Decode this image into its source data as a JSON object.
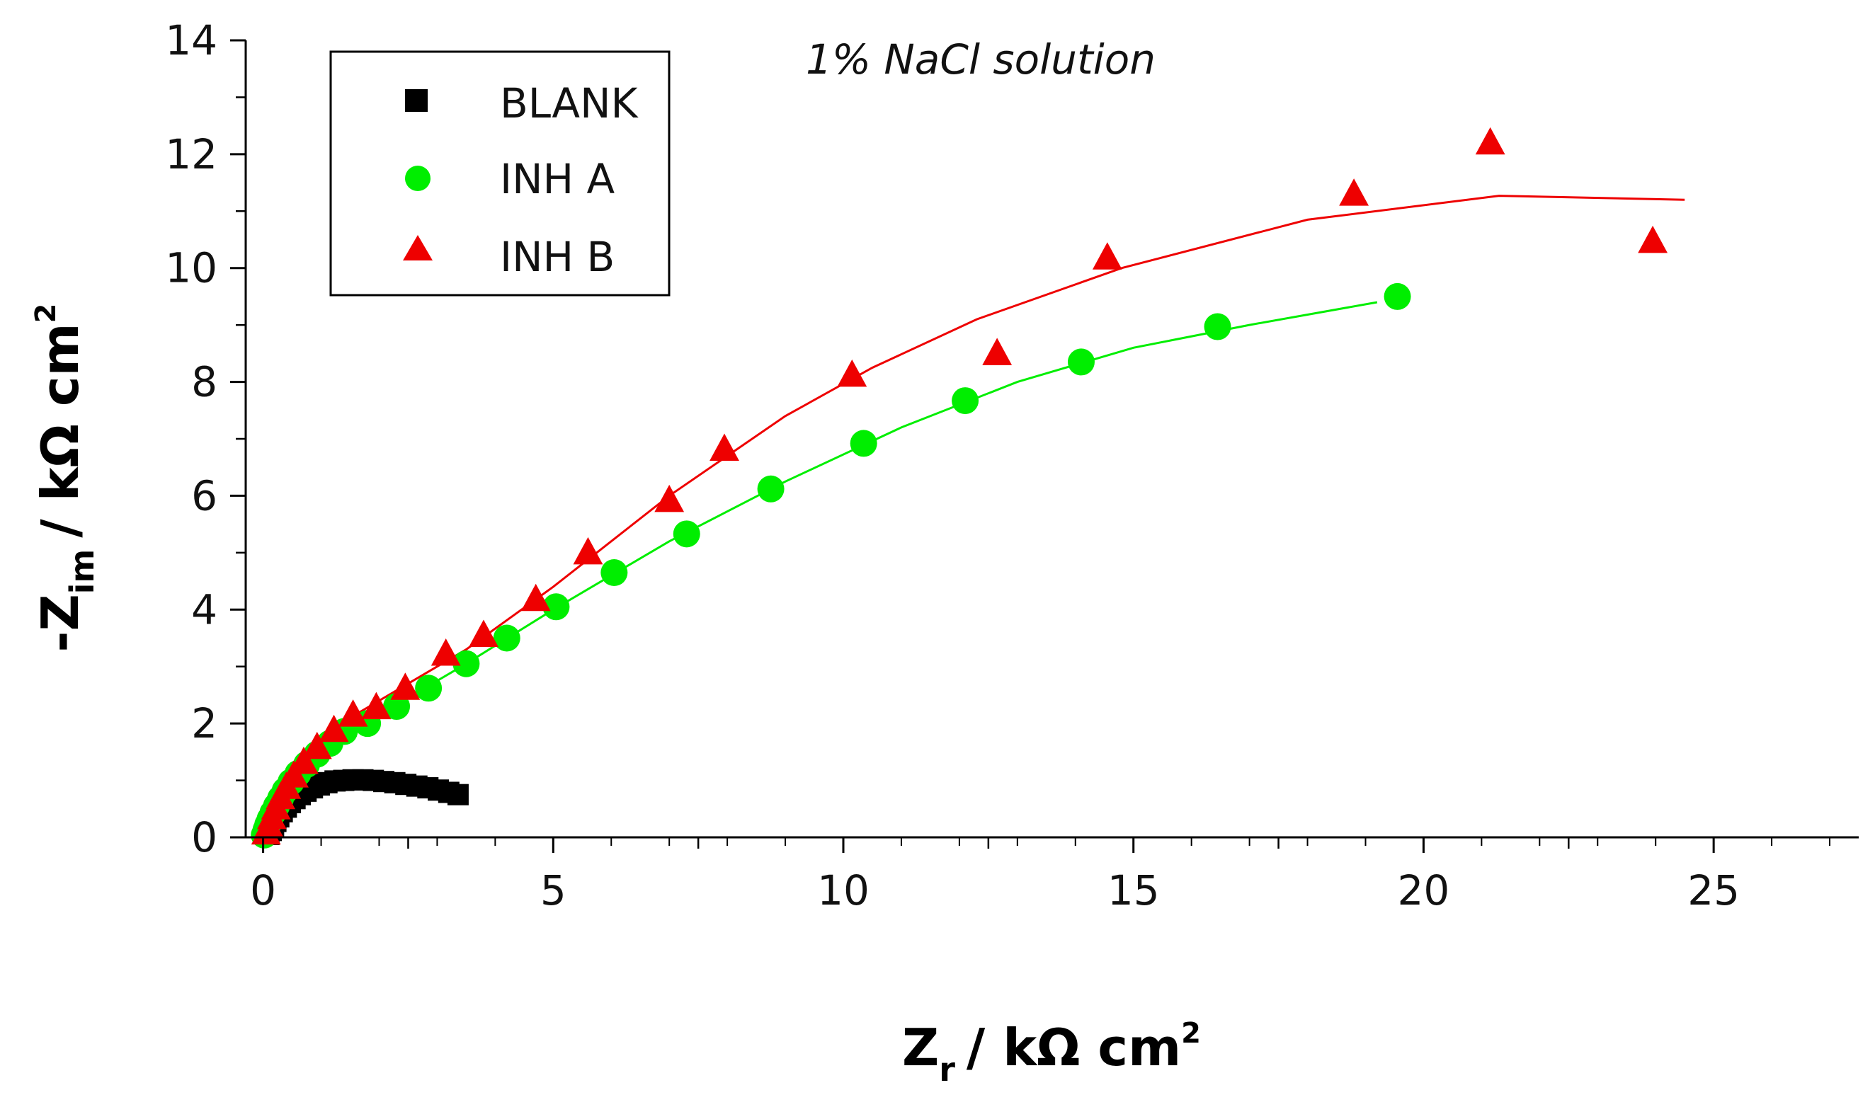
{
  "chart_data": {
    "type": "scatter",
    "title": "1% NaCl solution",
    "xlabel": {
      "main": "Z",
      "sub": "r",
      "unit": "/ kΩ cm",
      "sup": "2"
    },
    "ylabel": {
      "main": "-Z",
      "sub": "im",
      "unit": "/ kΩ cm",
      "sup": "2"
    },
    "xlim": [
      -0.3,
      27.5
    ],
    "ylim": [
      0,
      14
    ],
    "xticks": [
      0,
      5,
      10,
      15,
      20,
      25
    ],
    "xtick_labels": [
      "0",
      "5",
      "10",
      "15",
      "20",
      "25"
    ],
    "yticks": [
      0,
      2,
      4,
      6,
      8,
      10,
      12,
      14
    ],
    "ytick_labels": [
      "0",
      "2",
      "4",
      "6",
      "8",
      "10",
      "12",
      "14"
    ],
    "legend_position": "top-left",
    "series": [
      {
        "name": "BLANK",
        "marker": "square",
        "color": "#000000",
        "points": [
          [
            0.1,
            0.05
          ],
          [
            0.14,
            0.12
          ],
          [
            0.18,
            0.2
          ],
          [
            0.22,
            0.28
          ],
          [
            0.27,
            0.36
          ],
          [
            0.33,
            0.45
          ],
          [
            0.4,
            0.53
          ],
          [
            0.47,
            0.61
          ],
          [
            0.55,
            0.68
          ],
          [
            0.64,
            0.75
          ],
          [
            0.74,
            0.81
          ],
          [
            0.85,
            0.87
          ],
          [
            0.97,
            0.92
          ],
          [
            1.1,
            0.96
          ],
          [
            1.24,
            0.99
          ],
          [
            1.39,
            1.0
          ],
          [
            1.55,
            1.01
          ],
          [
            1.72,
            1.01
          ],
          [
            1.9,
            1.0
          ],
          [
            2.08,
            0.98
          ],
          [
            2.27,
            0.96
          ],
          [
            2.46,
            0.93
          ],
          [
            2.65,
            0.9
          ],
          [
            2.84,
            0.87
          ],
          [
            3.02,
            0.83
          ],
          [
            3.2,
            0.79
          ],
          [
            3.36,
            0.75
          ]
        ]
      },
      {
        "name": "INH A",
        "marker": "circle",
        "color": "#00ee00",
        "points": [
          [
            0.02,
            0.04
          ],
          [
            0.05,
            0.13
          ],
          [
            0.08,
            0.22
          ],
          [
            0.12,
            0.32
          ],
          [
            0.17,
            0.43
          ],
          [
            0.23,
            0.55
          ],
          [
            0.3,
            0.68
          ],
          [
            0.38,
            0.82
          ],
          [
            0.48,
            0.97
          ],
          [
            0.6,
            1.12
          ],
          [
            0.75,
            1.28
          ],
          [
            0.93,
            1.46
          ],
          [
            1.15,
            1.65
          ],
          [
            1.4,
            1.86
          ],
          [
            1.8,
            2.0
          ],
          [
            2.3,
            2.3
          ],
          [
            2.85,
            2.62
          ],
          [
            3.5,
            3.05
          ],
          [
            4.2,
            3.5
          ],
          [
            5.05,
            4.05
          ],
          [
            6.05,
            4.65
          ],
          [
            7.3,
            5.33
          ],
          [
            8.75,
            6.12
          ],
          [
            10.35,
            6.92
          ],
          [
            12.1,
            7.67
          ],
          [
            14.1,
            8.35
          ],
          [
            16.45,
            8.97
          ],
          [
            19.55,
            9.5
          ]
        ],
        "fit": [
          [
            0,
            0
          ],
          [
            0.3,
            0.7
          ],
          [
            0.8,
            1.35
          ],
          [
            1.5,
            1.85
          ],
          [
            2.5,
            2.45
          ],
          [
            3.5,
            3.05
          ],
          [
            5,
            4.0
          ],
          [
            7,
            5.2
          ],
          [
            9,
            6.25
          ],
          [
            11,
            7.2
          ],
          [
            13,
            8.0
          ],
          [
            15,
            8.6
          ],
          [
            17,
            9.0
          ],
          [
            19.2,
            9.4
          ]
        ]
      },
      {
        "name": "INH B",
        "marker": "triangle",
        "color": "#ee0000",
        "points": [
          [
            0.05,
            0.08
          ],
          [
            0.1,
            0.2
          ],
          [
            0.15,
            0.35
          ],
          [
            0.22,
            0.52
          ],
          [
            0.3,
            0.7
          ],
          [
            0.4,
            0.88
          ],
          [
            0.53,
            1.08
          ],
          [
            0.7,
            1.32
          ],
          [
            0.93,
            1.58
          ],
          [
            1.22,
            1.88
          ],
          [
            1.55,
            2.15
          ],
          [
            1.95,
            2.28
          ],
          [
            2.45,
            2.62
          ],
          [
            3.15,
            3.22
          ],
          [
            3.8,
            3.55
          ],
          [
            4.7,
            4.18
          ],
          [
            5.6,
            5.0
          ],
          [
            7.0,
            5.92
          ],
          [
            7.95,
            6.82
          ],
          [
            10.15,
            8.12
          ],
          [
            12.65,
            8.5
          ],
          [
            14.55,
            10.18
          ],
          [
            18.8,
            11.3
          ],
          [
            21.15,
            12.2
          ],
          [
            23.95,
            10.47
          ]
        ],
        "fit": [
          [
            0,
            0
          ],
          [
            0.3,
            0.8
          ],
          [
            0.8,
            1.5
          ],
          [
            1.5,
            2.1
          ],
          [
            2.5,
            2.7
          ],
          [
            3.5,
            3.3
          ],
          [
            5,
            4.4
          ],
          [
            7,
            6.0
          ],
          [
            9,
            7.4
          ],
          [
            10.5,
            8.25
          ],
          [
            12.3,
            9.1
          ],
          [
            14.8,
            10.0
          ],
          [
            18,
            10.85
          ],
          [
            21.3,
            11.27
          ],
          [
            24.5,
            11.2
          ]
        ]
      }
    ]
  }
}
